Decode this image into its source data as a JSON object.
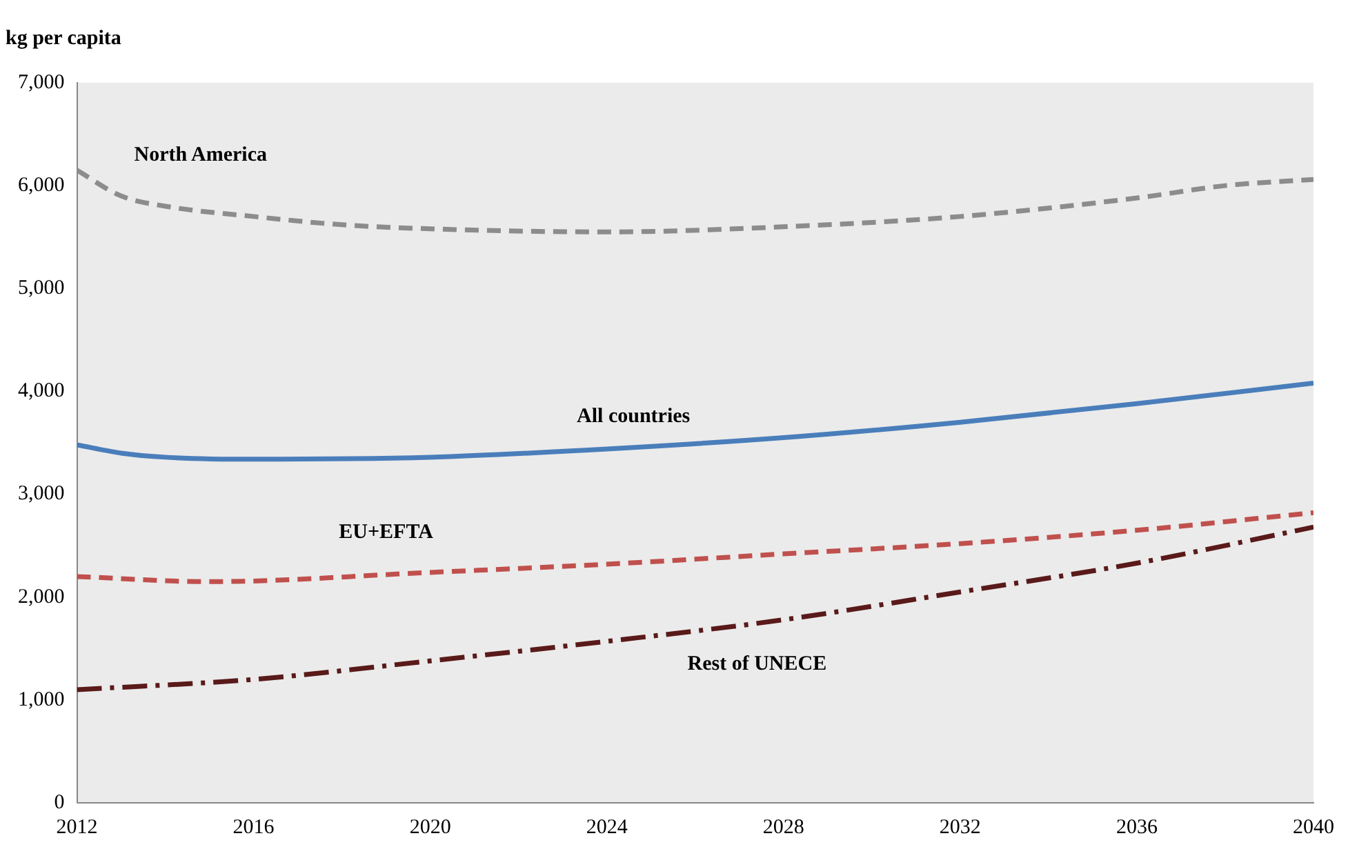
{
  "chart_data": {
    "type": "line",
    "ylabel": "kg per capita",
    "xlim": [
      2012,
      2040
    ],
    "xticks": [
      2012,
      2016,
      2020,
      2024,
      2028,
      2032,
      2036,
      2040
    ],
    "ylim": [
      0,
      7000
    ],
    "yticks": [
      0,
      {
        "value": 1000,
        "label": "1,000"
      },
      {
        "value": 2000,
        "label": "2,000"
      },
      {
        "value": 3000,
        "label": "3,000"
      },
      {
        "value": 4000,
        "label": "4,000"
      },
      {
        "value": 5000,
        "label": "5,000"
      },
      {
        "value": 6000,
        "label": "6,000"
      },
      {
        "value": 7000,
        "label": "7,000"
      }
    ],
    "grid": false,
    "legend": false,
    "series": [
      {
        "name": "North America",
        "color": "#8c8c8c",
        "line_style": "dashed",
        "x": [
          2012,
          2013,
          2014,
          2016,
          2018,
          2020,
          2024,
          2028,
          2032,
          2036,
          2038,
          2040
        ],
        "values": [
          6150,
          5900,
          5800,
          5700,
          5620,
          5580,
          5550,
          5600,
          5700,
          5880,
          6000,
          6060
        ]
      },
      {
        "name": "All countries",
        "color": "#4a7ebb",
        "line_style": "solid",
        "x": [
          2012,
          2013,
          2014,
          2016,
          2020,
          2024,
          2028,
          2032,
          2036,
          2040
        ],
        "values": [
          3480,
          3400,
          3360,
          3340,
          3360,
          3440,
          3550,
          3700,
          3880,
          4080
        ]
      },
      {
        "name": "EU+EFTA",
        "color": "#c0504d",
        "line_style": "dashed",
        "x": [
          2012,
          2015,
          2020,
          2024,
          2028,
          2032,
          2036,
          2040
        ],
        "values": [
          2200,
          2150,
          2240,
          2320,
          2420,
          2520,
          2650,
          2820
        ]
      },
      {
        "name": "Rest of UNECE",
        "color": "#5a1a1a",
        "line_style": "dashdot",
        "x": [
          2012,
          2016,
          2020,
          2024,
          2028,
          2032,
          2036,
          2040
        ],
        "values": [
          1100,
          1200,
          1380,
          1570,
          1780,
          2050,
          2330,
          2680
        ]
      }
    ]
  }
}
